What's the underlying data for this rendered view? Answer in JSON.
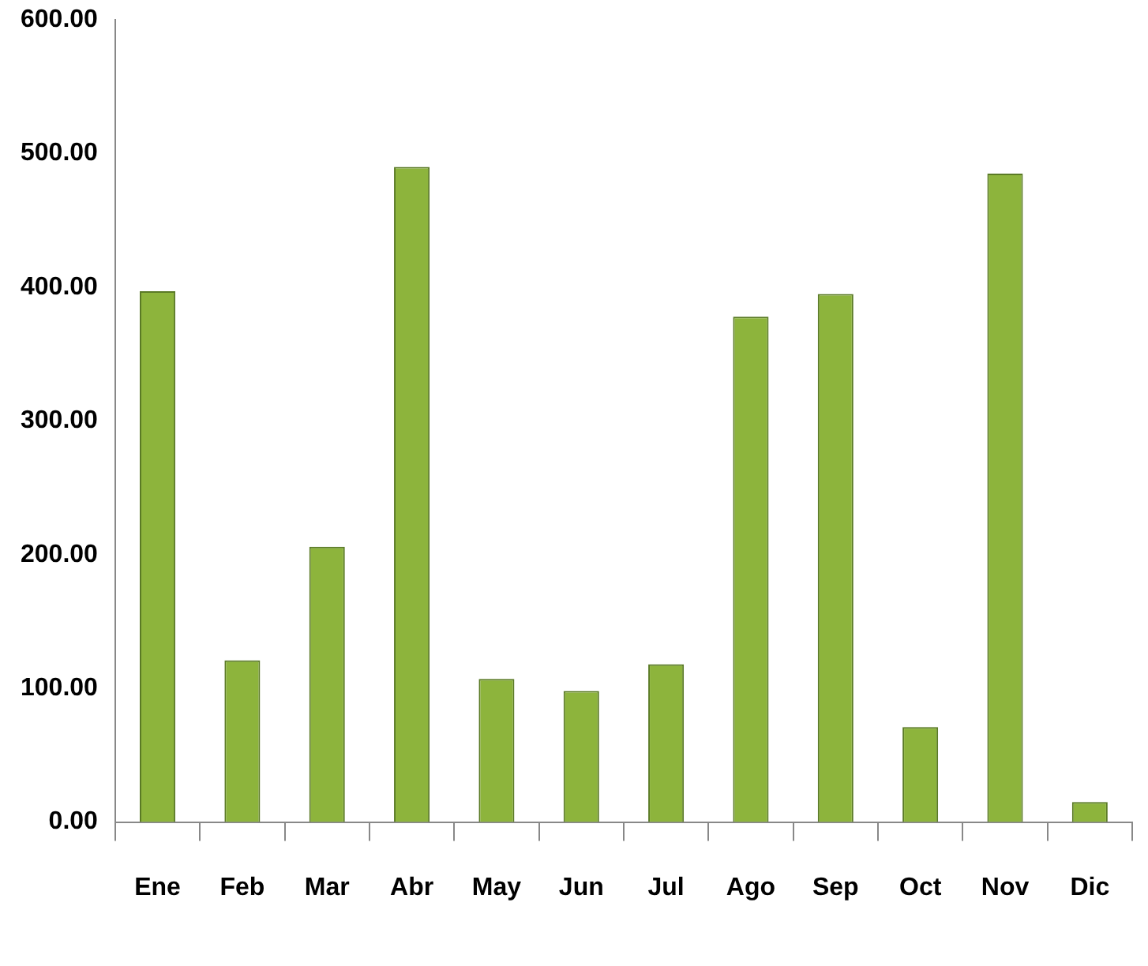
{
  "chart_data": {
    "type": "bar",
    "categories": [
      "Ene",
      "Feb",
      "Mar",
      "Abr",
      "May",
      "Jun",
      "Jul",
      "Ago",
      "Sep",
      "Oct",
      "Nov",
      "Dic"
    ],
    "values": [
      397,
      121,
      206,
      490,
      107,
      98,
      118,
      378,
      395,
      71,
      485,
      15
    ],
    "color": "#8db43c",
    "ylim": [
      0,
      600
    ],
    "yticks": [
      {
        "value": 0,
        "label": "0.00"
      },
      {
        "value": 100,
        "label": "100.00"
      },
      {
        "value": 200,
        "label": "200.00"
      },
      {
        "value": 300,
        "label": "300.00"
      },
      {
        "value": 400,
        "label": "400.00"
      },
      {
        "value": 500,
        "label": "500.00"
      },
      {
        "value": 600,
        "label": "600.00"
      }
    ],
    "grid": false,
    "legend": false
  }
}
